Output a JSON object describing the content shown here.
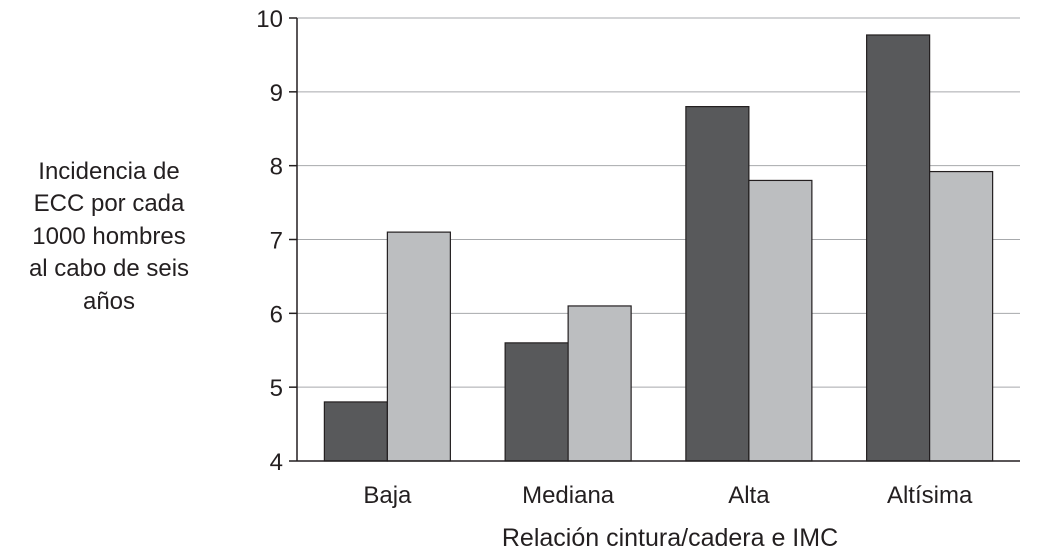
{
  "chart_data": {
    "type": "bar",
    "title": "",
    "ylabel_lines": [
      "Incidencia de",
      "ECC por cada",
      "1000 hombres",
      "al cabo de seis",
      "años"
    ],
    "xlabel": "Relación cintura/cadera e IMC",
    "categories": [
      "Baja",
      "Mediana",
      "Alta",
      "Altísima"
    ],
    "series": [
      {
        "color": "#58595b",
        "values": [
          4.8,
          5.6,
          8.8,
          9.77
        ]
      },
      {
        "color": "#bcbec0",
        "values": [
          7.1,
          6.1,
          7.8,
          7.92
        ]
      }
    ],
    "ylim": [
      4,
      10
    ],
    "yticks": [
      4,
      5,
      6,
      7,
      8,
      9,
      10
    ],
    "grid": true,
    "legend": "none"
  }
}
